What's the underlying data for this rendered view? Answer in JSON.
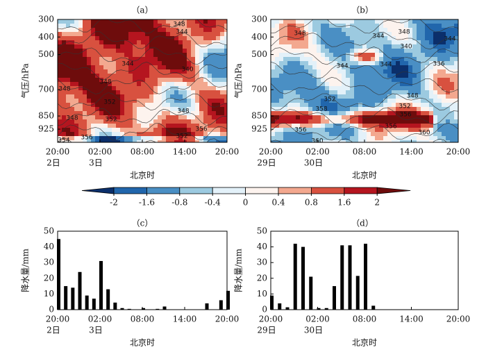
{
  "chart_data": [
    {
      "type": "heatmap",
      "title": "（a）",
      "ylabel": "气压/hPa",
      "xlabel": "北京时",
      "xlim": [
        0,
        24
      ],
      "xticks": [
        {
          "value": 0,
          "label": "20:00"
        },
        {
          "value": 6,
          "label": "02:00"
        },
        {
          "value": 12,
          "label": "08:00"
        },
        {
          "value": 18,
          "label": "14:00"
        },
        {
          "value": 24,
          "label": "20:00"
        }
      ],
      "xtick_sublabels": [
        {
          "value": 0,
          "label": "2日"
        },
        {
          "value": 6,
          "label": "3日"
        }
      ],
      "ylim": [
        300,
        1000
      ],
      "y_inverted": true,
      "yticks": [
        300,
        400,
        500,
        700,
        850,
        925
      ],
      "contour_labels": [
        348,
        344,
        344,
        348,
        340,
        348,
        352,
        348,
        352,
        348,
        356,
        352,
        356,
        354
      ]
    },
    {
      "type": "heatmap",
      "title": "（b）",
      "ylabel": "气压/hPa",
      "xlabel": "北京时",
      "xlim": [
        0,
        24
      ],
      "xticks": [
        {
          "value": 0,
          "label": "20:00"
        },
        {
          "value": 6,
          "label": "02:00"
        },
        {
          "value": 12,
          "label": "08:00"
        },
        {
          "value": 18,
          "label": "14:00"
        },
        {
          "value": 24,
          "label": "20:00"
        }
      ],
      "xtick_sublabels": [
        {
          "value": 0,
          "label": "29日"
        },
        {
          "value": 6,
          "label": "30日"
        }
      ],
      "ylim": [
        300,
        1000
      ],
      "y_inverted": true,
      "yticks": [
        300,
        400,
        500,
        700,
        850,
        925
      ],
      "contour_labels": [
        348,
        344,
        348,
        344,
        340,
        344,
        344,
        336,
        352,
        348,
        352,
        356,
        358,
        356,
        356,
        360,
        360
      ]
    },
    {
      "type": "colorbar",
      "ticks": [
        -2,
        -1.6,
        -0.8,
        -0.4,
        0,
        0.4,
        0.8,
        1.6,
        2
      ],
      "colors": [
        "#0b2f6b",
        "#2166ac",
        "#4a8fc4",
        "#9ccae0",
        "#e3f1f9",
        "#fdf3ee",
        "#f3a88f",
        "#d8513f",
        "#b5151f",
        "#6e0c0c"
      ]
    },
    {
      "type": "bar",
      "title": "（c）",
      "ylabel": "降水量/mm",
      "xlabel": "北京时",
      "color": "#000000",
      "x": [
        0,
        1,
        2,
        3,
        4,
        5,
        6,
        7,
        8,
        9,
        10,
        12,
        14,
        15,
        18,
        21,
        23,
        24
      ],
      "values": [
        45,
        15,
        14,
        24,
        9,
        7,
        31,
        13,
        4.5,
        1,
        0.5,
        1,
        0.5,
        2,
        0.2,
        4,
        6,
        12
      ],
      "xlim": [
        0,
        24
      ],
      "xticks": [
        {
          "value": 0,
          "label": "20:00"
        },
        {
          "value": 6,
          "label": "02:00"
        },
        {
          "value": 12,
          "label": "08:00"
        },
        {
          "value": 18,
          "label": "14:00"
        },
        {
          "value": 24,
          "label": "20:00"
        }
      ],
      "xtick_sublabels": [
        {
          "value": 0,
          "label": "2日"
        },
        {
          "value": 6,
          "label": "3日"
        }
      ],
      "ylim": [
        0,
        50
      ],
      "yticks": [
        0,
        10,
        20,
        30,
        40,
        50
      ]
    },
    {
      "type": "bar",
      "title": "（d）",
      "ylabel": "降水量/mm",
      "xlabel": "北京时",
      "color": "#000000",
      "x": [
        0,
        1,
        2,
        3,
        4,
        5,
        6,
        7,
        8,
        9,
        10,
        11,
        12,
        13
      ],
      "values": [
        9,
        4,
        1.5,
        42,
        40,
        21,
        1,
        1,
        15,
        41,
        41,
        21.5,
        42,
        2.5
      ],
      "xlim": [
        0,
        24
      ],
      "xticks": [
        {
          "value": 0,
          "label": "20:00"
        },
        {
          "value": 6,
          "label": "02:00"
        },
        {
          "value": 12,
          "label": "08:00"
        },
        {
          "value": 18,
          "label": "14:00"
        },
        {
          "value": 24,
          "label": "20:00"
        }
      ],
      "xtick_sublabels": [
        {
          "value": 0,
          "label": "29日"
        },
        {
          "value": 6,
          "label": "30日"
        }
      ],
      "ylim": [
        0,
        50
      ],
      "yticks": [
        0,
        10,
        20,
        30,
        40,
        50
      ]
    }
  ]
}
